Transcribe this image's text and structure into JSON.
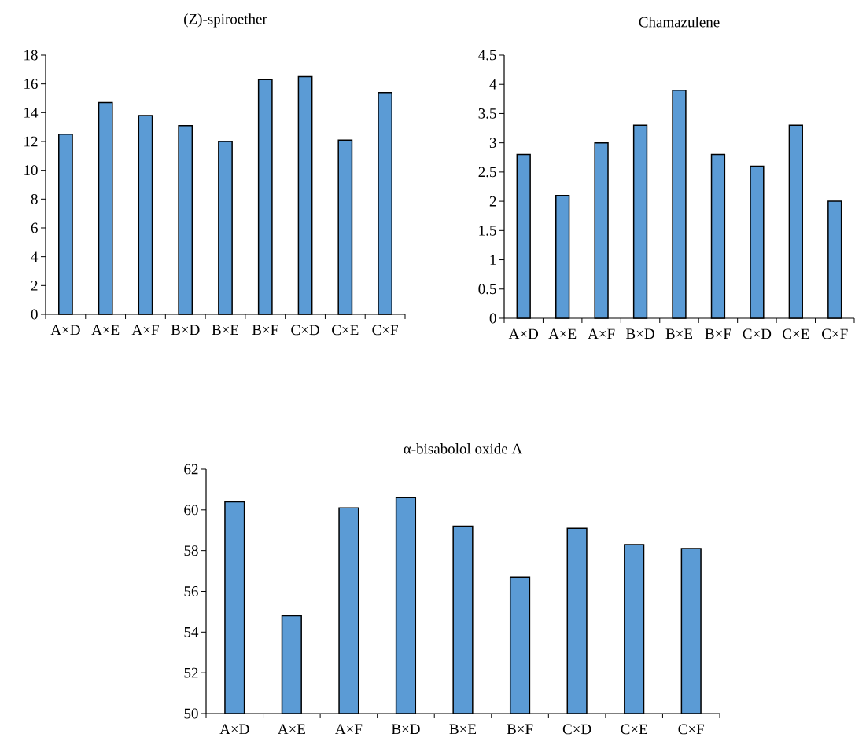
{
  "chart_data": [
    {
      "type": "bar",
      "title": "(Z)-spiroether",
      "categories": [
        "A×D",
        "A×E",
        "A×F",
        "B×D",
        "B×E",
        "B×F",
        "C×D",
        "C×E",
        "C×F"
      ],
      "values": [
        12.5,
        14.7,
        13.8,
        13.1,
        12.0,
        16.3,
        16.5,
        12.1,
        15.4
      ],
      "color": "#5b9bd5",
      "ylim": [
        0,
        18
      ],
      "yticks": [
        0,
        2,
        4,
        6,
        8,
        10,
        12,
        14,
        16,
        18
      ]
    },
    {
      "type": "bar",
      "title": "Chamazulene",
      "categories": [
        "A×D",
        "A×E",
        "A×F",
        "B×D",
        "B×E",
        "B×F",
        "C×D",
        "C×E",
        "C×F"
      ],
      "values": [
        2.8,
        2.1,
        3.0,
        3.3,
        3.9,
        2.8,
        2.6,
        3.3,
        2.0
      ],
      "color": "#5b9bd5",
      "ylim": [
        0,
        4.5
      ],
      "yticks": [
        0,
        0.5,
        1,
        1.5,
        2,
        2.5,
        3,
        3.5,
        4,
        4.5
      ]
    },
    {
      "type": "bar",
      "title": "α-bisabolol oxide A",
      "categories": [
        "A×D",
        "A×E",
        "A×F",
        "B×D",
        "B×E",
        "B×F",
        "C×D",
        "C×E",
        "C×F"
      ],
      "values": [
        60.4,
        54.8,
        60.1,
        60.6,
        59.2,
        56.7,
        59.1,
        58.3,
        58.1
      ],
      "color": "#5b9bd5",
      "ylim": [
        50,
        62
      ],
      "yticks": [
        50,
        52,
        54,
        56,
        58,
        60,
        62
      ]
    }
  ]
}
